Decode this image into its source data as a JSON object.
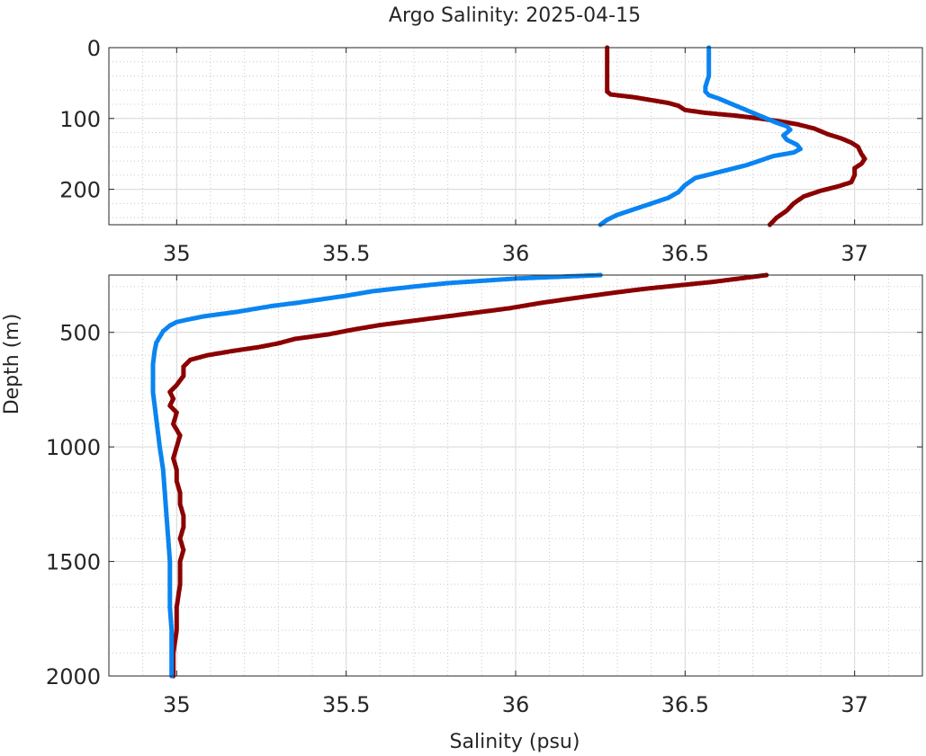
{
  "title": "Argo Salinity: 2025-04-15",
  "chart_data": [
    {
      "type": "scatter",
      "panel": "upper",
      "xlim": [
        34.8,
        37.2
      ],
      "ylim": [
        0,
        250
      ],
      "y_reversed": true,
      "grid": true,
      "minor_grid": true,
      "x_ticks": [
        35,
        35.5,
        36,
        36.5,
        37
      ],
      "x_tick_labels": [
        "35",
        "35.5",
        "36",
        "36.5",
        "37"
      ],
      "y_ticks": [
        0,
        100,
        200
      ],
      "y_tick_labels": [
        "0",
        "100",
        "200"
      ],
      "series": [
        {
          "color": "#8b0000",
          "points": [
            [
              36.27,
              0
            ],
            [
              36.27,
              20
            ],
            [
              36.27,
              40
            ],
            [
              36.27,
              55
            ],
            [
              36.27,
              62
            ],
            [
              36.28,
              66
            ],
            [
              36.35,
              70
            ],
            [
              36.4,
              74
            ],
            [
              36.45,
              78
            ],
            [
              36.48,
              82
            ],
            [
              36.5,
              88
            ],
            [
              36.56,
              92
            ],
            [
              36.65,
              96
            ],
            [
              36.72,
              100
            ],
            [
              36.78,
              104
            ],
            [
              36.83,
              108
            ],
            [
              36.88,
              114
            ],
            [
              36.92,
              122
            ],
            [
              36.96,
              128
            ],
            [
              36.99,
              134
            ],
            [
              37.01,
              140
            ],
            [
              37.02,
              150
            ],
            [
              37.03,
              157
            ],
            [
              37.02,
              164
            ],
            [
              37.0,
              170
            ],
            [
              37.0,
              180
            ],
            [
              36.99,
              190
            ],
            [
              36.95,
              196
            ],
            [
              36.9,
              202
            ],
            [
              36.85,
              210
            ],
            [
              36.82,
              220
            ],
            [
              36.8,
              230
            ],
            [
              36.77,
              240
            ],
            [
              36.75,
              250
            ]
          ]
        },
        {
          "color": "#0a84f0",
          "points": [
            [
              36.57,
              0
            ],
            [
              36.57,
              20
            ],
            [
              36.57,
              40
            ],
            [
              36.56,
              55
            ],
            [
              36.56,
              62
            ],
            [
              36.57,
              67
            ],
            [
              36.6,
              72
            ],
            [
              36.63,
              78
            ],
            [
              36.66,
              84
            ],
            [
              36.7,
              92
            ],
            [
              36.74,
              100
            ],
            [
              36.77,
              106
            ],
            [
              36.8,
              111
            ],
            [
              36.81,
              116
            ],
            [
              36.79,
              124
            ],
            [
              36.8,
              130
            ],
            [
              36.83,
              137
            ],
            [
              36.84,
              143
            ],
            [
              36.82,
              148
            ],
            [
              36.76,
              153
            ],
            [
              36.73,
              158
            ],
            [
              36.68,
              166
            ],
            [
              36.63,
              172
            ],
            [
              36.58,
              178
            ],
            [
              36.53,
              184
            ],
            [
              36.5,
              194
            ],
            [
              36.48,
              204
            ],
            [
              36.45,
              212
            ],
            [
              36.4,
              220
            ],
            [
              36.35,
              228
            ],
            [
              36.3,
              236
            ],
            [
              36.27,
              243
            ],
            [
              36.25,
              250
            ]
          ]
        }
      ]
    },
    {
      "type": "scatter",
      "panel": "lower",
      "xlim": [
        34.8,
        37.2
      ],
      "ylim": [
        250,
        2000
      ],
      "y_reversed": true,
      "grid": true,
      "minor_grid": true,
      "x_ticks": [
        35,
        35.5,
        36,
        36.5,
        37
      ],
      "x_tick_labels": [
        "35",
        "35.5",
        "36",
        "36.5",
        "37"
      ],
      "y_ticks": [
        500,
        1000,
        1500,
        2000
      ],
      "y_tick_labels": [
        "500",
        "1000",
        "1500",
        "2000"
      ],
      "xlabel": "Salinity (psu)",
      "ylabel": "Depth (m)",
      "series": [
        {
          "color": "#8b0000",
          "points": [
            [
              36.74,
              250
            ],
            [
              36.66,
              265
            ],
            [
              36.58,
              280
            ],
            [
              36.48,
              295
            ],
            [
              36.38,
              310
            ],
            [
              36.3,
              325
            ],
            [
              36.2,
              345
            ],
            [
              36.08,
              370
            ],
            [
              35.98,
              395
            ],
            [
              35.85,
              420
            ],
            [
              35.72,
              445
            ],
            [
              35.6,
              468
            ],
            [
              35.52,
              488
            ],
            [
              35.45,
              508
            ],
            [
              35.35,
              528
            ],
            [
              35.3,
              548
            ],
            [
              35.24,
              565
            ],
            [
              35.17,
              580
            ],
            [
              35.09,
              600
            ],
            [
              35.04,
              620
            ],
            [
              35.02,
              650
            ],
            [
              35.02,
              690
            ],
            [
              35.0,
              730
            ],
            [
              34.98,
              760
            ],
            [
              34.99,
              790
            ],
            [
              34.98,
              820
            ],
            [
              35.0,
              850
            ],
            [
              34.99,
              900
            ],
            [
              35.01,
              950
            ],
            [
              35.0,
              1000
            ],
            [
              34.99,
              1050
            ],
            [
              35.0,
              1100
            ],
            [
              35.0,
              1150
            ],
            [
              35.01,
              1200
            ],
            [
              35.01,
              1250
            ],
            [
              35.02,
              1300
            ],
            [
              35.02,
              1350
            ],
            [
              35.01,
              1400
            ],
            [
              35.02,
              1450
            ],
            [
              35.01,
              1500
            ],
            [
              35.01,
              1600
            ],
            [
              35.0,
              1700
            ],
            [
              35.0,
              1800
            ],
            [
              34.99,
              1900
            ],
            [
              34.99,
              2000
            ]
          ]
        },
        {
          "color": "#0a84f0",
          "points": [
            [
              36.25,
              250
            ],
            [
              36.0,
              265
            ],
            [
              35.9,
              275
            ],
            [
              35.8,
              285
            ],
            [
              35.7,
              300
            ],
            [
              35.58,
              320
            ],
            [
              35.5,
              340
            ],
            [
              35.43,
              355
            ],
            [
              35.36,
              370
            ],
            [
              35.28,
              385
            ],
            [
              35.22,
              400
            ],
            [
              35.18,
              410
            ],
            [
              35.13,
              420
            ],
            [
              35.08,
              430
            ],
            [
              35.03,
              445
            ],
            [
              35.0,
              455
            ],
            [
              34.98,
              470
            ],
            [
              34.96,
              495
            ],
            [
              34.95,
              520
            ],
            [
              34.94,
              545
            ],
            [
              34.935,
              580
            ],
            [
              34.93,
              640
            ],
            [
              34.93,
              700
            ],
            [
              34.93,
              760
            ],
            [
              34.935,
              820
            ],
            [
              34.94,
              880
            ],
            [
              34.945,
              940
            ],
            [
              34.95,
              1000
            ],
            [
              34.96,
              1100
            ],
            [
              34.965,
              1200
            ],
            [
              34.97,
              1300
            ],
            [
              34.975,
              1400
            ],
            [
              34.98,
              1500
            ],
            [
              34.98,
              1600
            ],
            [
              34.98,
              1700
            ],
            [
              34.985,
              1800
            ],
            [
              34.985,
              1900
            ],
            [
              34.985,
              2000
            ]
          ]
        }
      ]
    }
  ]
}
